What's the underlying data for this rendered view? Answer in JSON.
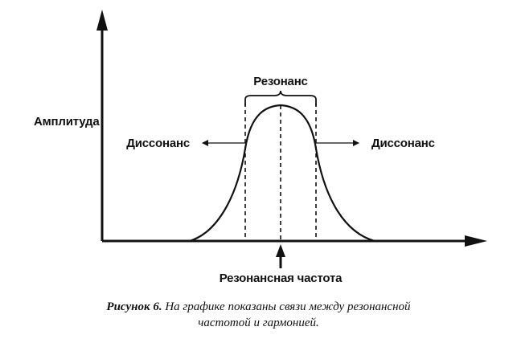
{
  "labels": {
    "y_axis": "Амплитуда",
    "resonance": "Резонанс",
    "dissonance_left": "Диссонанс",
    "dissonance_right": "Диссонанс",
    "resonant_frequency": "Резонансная частота"
  },
  "caption": {
    "lead": "Рисунок 6.",
    "line1": "На графике показаны связи между резонансной",
    "line2": "частотой и гармонией."
  },
  "colors": {
    "ink": "#111111",
    "background": "#ffffff"
  }
}
